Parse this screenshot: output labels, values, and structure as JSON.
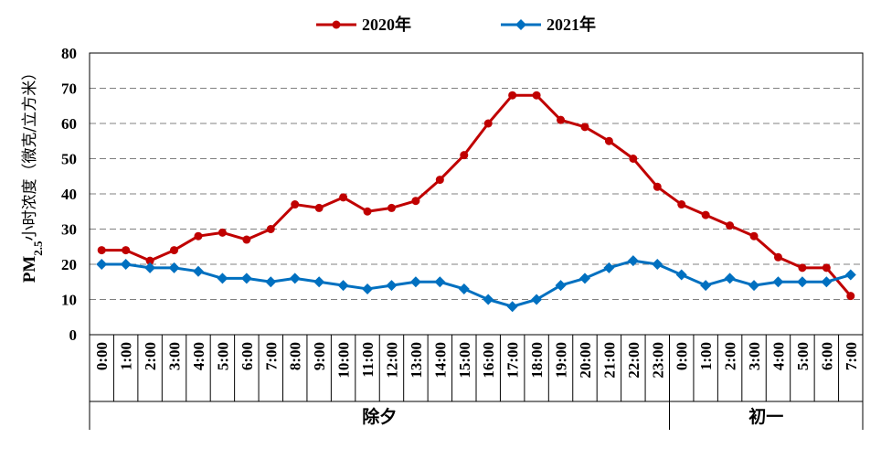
{
  "chart_data": {
    "type": "line",
    "title": "",
    "ylabel": {
      "prefix": "PM",
      "subscript": "2.5",
      "suffix": "小时浓度（微克/立方米）"
    },
    "ylim": [
      0,
      80
    ],
    "yticks": [
      0,
      10,
      20,
      30,
      40,
      50,
      60,
      70,
      80
    ],
    "grid": "horizontal-dashed",
    "legend_position": "top-center",
    "categories": [
      "0:00",
      "1:00",
      "2:00",
      "3:00",
      "4:00",
      "5:00",
      "6:00",
      "7:00",
      "8:00",
      "9:00",
      "10:00",
      "11:00",
      "12:00",
      "13:00",
      "14:00",
      "15:00",
      "16:00",
      "17:00",
      "18:00",
      "19:00",
      "20:00",
      "21:00",
      "22:00",
      "23:00",
      "0:00",
      "1:00",
      "2:00",
      "3:00",
      "4:00",
      "5:00",
      "6:00",
      "7:00"
    ],
    "groups": [
      {
        "label": "除夕",
        "start": 0,
        "end": 23
      },
      {
        "label": "初一",
        "start": 24,
        "end": 31
      }
    ],
    "series": [
      {
        "name": "2020年",
        "color": "#C00000",
        "marker": "circle",
        "values": [
          24,
          24,
          21,
          24,
          28,
          29,
          27,
          30,
          37,
          36,
          39,
          35,
          36,
          38,
          44,
          51,
          60,
          68,
          68,
          61,
          59,
          55,
          50,
          42,
          37,
          34,
          31,
          28,
          22,
          19,
          19,
          11
        ]
      },
      {
        "name": "2021年",
        "color": "#0070C0",
        "marker": "diamond",
        "values": [
          20,
          20,
          19,
          19,
          18,
          16,
          16,
          15,
          16,
          15,
          14,
          13,
          14,
          15,
          15,
          13,
          10,
          8,
          10,
          14,
          16,
          19,
          21,
          20,
          17,
          14,
          16,
          14,
          15,
          15,
          15,
          17
        ]
      }
    ]
  }
}
